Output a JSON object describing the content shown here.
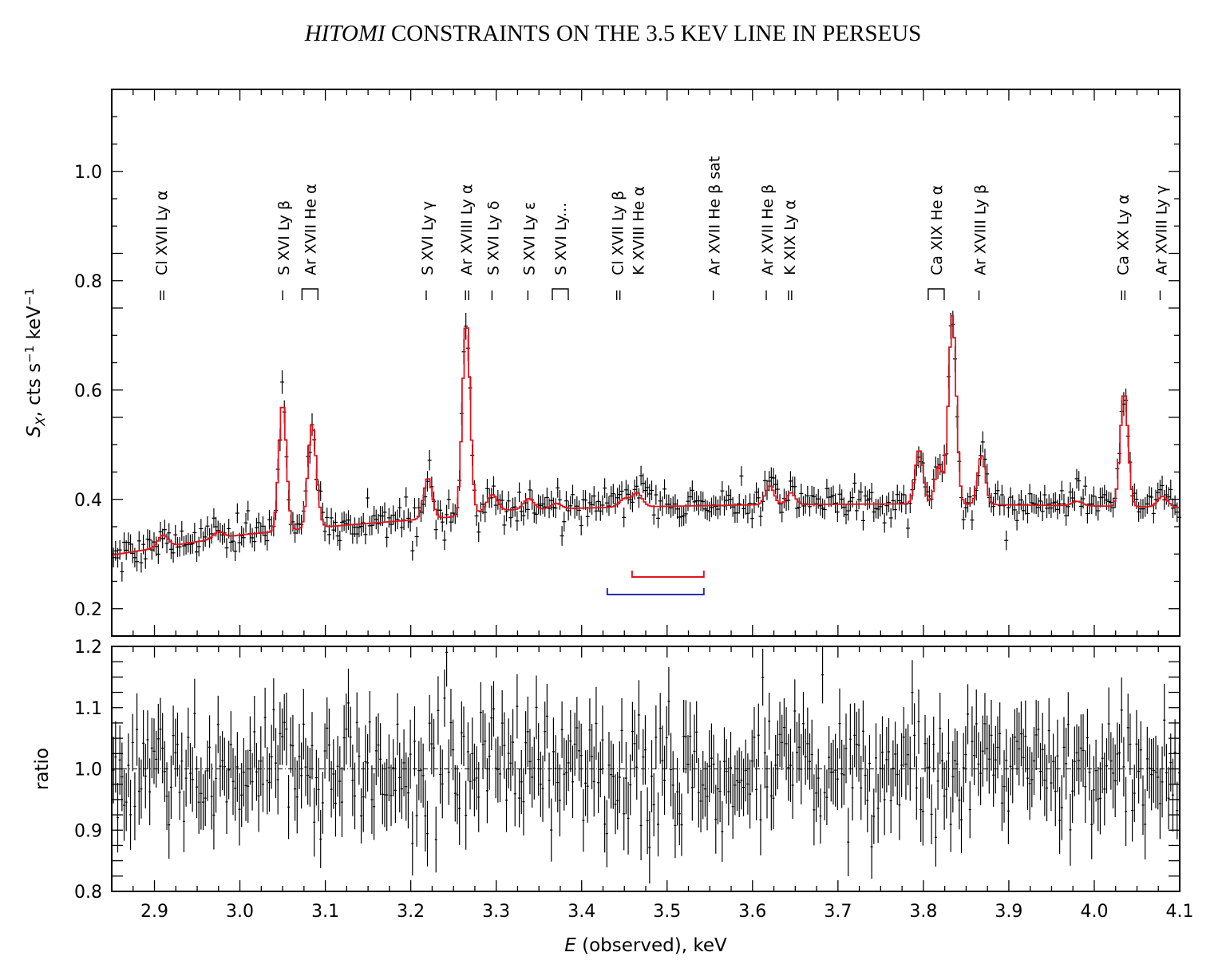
{
  "header": {
    "title_italic": "HITOMI",
    "title_rest": " CONSTRAINTS ON THE 3.5 KEV LINE IN PERSEUS"
  },
  "colors": {
    "model": "#e0141e",
    "data": "#000000",
    "bracket_red": "#e0141e",
    "bracket_blue": "#1f2fb0"
  },
  "chart_data": [
    {
      "type": "line",
      "panel": "top",
      "xlabel_italic": "E",
      "xlabel_rest": " (observed), keV",
      "ylabel_main": "S",
      "ylabel_sub": "X",
      "ylabel_rest": ",  cts s",
      "ylabel_sup1": "−1",
      "ylabel_mid": " keV",
      "ylabel_sup2": "−1",
      "xlim": [
        2.85,
        4.1
      ],
      "ylim": [
        0.15,
        1.15
      ],
      "xticks": [
        "2.9",
        "3.0",
        "3.1",
        "3.2",
        "3.3",
        "3.4",
        "3.5",
        "3.6",
        "3.7",
        "3.8",
        "3.9",
        "4.0",
        "4.1"
      ],
      "yticks": [
        "0.2",
        "0.4",
        "0.6",
        "0.8",
        "1.0"
      ],
      "continuum": [
        [
          2.85,
          0.298
        ],
        [
          3.0,
          0.335
        ],
        [
          3.05,
          0.342
        ],
        [
          3.1,
          0.35
        ],
        [
          3.25,
          0.368
        ],
        [
          3.3,
          0.38
        ],
        [
          3.45,
          0.386
        ],
        [
          3.6,
          0.39
        ],
        [
          3.8,
          0.392
        ],
        [
          4.0,
          0.388
        ],
        [
          4.1,
          0.385
        ]
      ],
      "lines": [
        {
          "E": 2.91,
          "amp": 0.022,
          "w": 0.006
        },
        {
          "E": 2.975,
          "amp": 0.012,
          "w": 0.006
        },
        {
          "E": 3.05,
          "amp": 0.235,
          "w": 0.0045
        },
        {
          "E": 3.084,
          "amp": 0.18,
          "w": 0.0045
        },
        {
          "E": 3.09,
          "amp": 0.03,
          "w": 0.004
        },
        {
          "E": 3.22,
          "amp": 0.075,
          "w": 0.005
        },
        {
          "E": 3.265,
          "amp": 0.355,
          "w": 0.0045
        },
        {
          "E": 3.295,
          "amp": 0.03,
          "w": 0.006
        },
        {
          "E": 3.338,
          "amp": 0.02,
          "w": 0.006
        },
        {
          "E": 3.37,
          "amp": 0.01,
          "w": 0.006
        },
        {
          "E": 3.45,
          "amp": 0.015,
          "w": 0.006
        },
        {
          "E": 3.465,
          "amp": 0.025,
          "w": 0.006
        },
        {
          "E": 3.62,
          "amp": 0.035,
          "w": 0.005
        },
        {
          "E": 3.645,
          "amp": 0.022,
          "w": 0.005
        },
        {
          "E": 3.795,
          "amp": 0.1,
          "w": 0.0045
        },
        {
          "E": 3.818,
          "amp": 0.07,
          "w": 0.0045
        },
        {
          "E": 3.834,
          "amp": 0.345,
          "w": 0.0045
        },
        {
          "E": 3.868,
          "amp": 0.09,
          "w": 0.0045
        },
        {
          "E": 3.98,
          "amp": 0.008,
          "w": 0.006
        },
        {
          "E": 4.035,
          "amp": 0.21,
          "w": 0.0045
        },
        {
          "E": 4.08,
          "amp": 0.02,
          "w": 0.006
        }
      ],
      "annotations": [
        {
          "E": 2.908,
          "label": "Cl XVII Ly α",
          "mark": "="
        },
        {
          "E": 3.051,
          "label": "S XVI Ly β",
          "mark": "–"
        },
        {
          "E": 3.082,
          "label": "Ar XVII He α",
          "mark": "]"
        },
        {
          "E": 3.219,
          "label": "S XVI Ly γ",
          "mark": "–"
        },
        {
          "E": 3.265,
          "label": "Ar XVIII Ly α",
          "mark": "="
        },
        {
          "E": 3.296,
          "label": "S XVI Ly δ",
          "mark": "–"
        },
        {
          "E": 3.338,
          "label": "S XVI Ly ε",
          "mark": "–"
        },
        {
          "E": 3.375,
          "label": "S XVI Ly...",
          "mark": "]"
        },
        {
          "E": 3.442,
          "label": "Cl XVII Ly β",
          "mark": "="
        },
        {
          "E": 3.466,
          "label": "K XVIII He α",
          "mark": ""
        },
        {
          "E": 3.555,
          "label": "Ar XVII He β sat",
          "mark": "–"
        },
        {
          "E": 3.617,
          "label": "Ar XVII He β",
          "mark": "–"
        },
        {
          "E": 3.643,
          "label": "K XIX Ly α",
          "mark": "="
        },
        {
          "E": 3.815,
          "label": "Ca XIX He α",
          "mark": "]"
        },
        {
          "E": 3.866,
          "label": "Ar XVIII Ly β",
          "mark": "–"
        },
        {
          "E": 4.033,
          "label": "Ca XX Ly α",
          "mark": "="
        },
        {
          "E": 4.078,
          "label": "Ar XVIII Ly γ",
          "mark": "–"
        }
      ],
      "brackets": [
        {
          "color": "red",
          "E_range": [
            3.459,
            3.543
          ],
          "y": 0.258
        },
        {
          "color": "blue",
          "E_range": [
            3.43,
            3.543
          ],
          "y": 0.226
        }
      ]
    },
    {
      "type": "scatter",
      "panel": "bottom",
      "ylabel": "ratio",
      "xlim": [
        2.85,
        4.1
      ],
      "ylim": [
        0.8,
        1.2
      ],
      "yticks": [
        "0.8",
        "0.9",
        "1.0",
        "1.1",
        "1.2"
      ],
      "reference_line": 1.0,
      "note": "~500 data points with 1-sigma error bars (~0.05), scattered around ratio 1.0"
    }
  ]
}
